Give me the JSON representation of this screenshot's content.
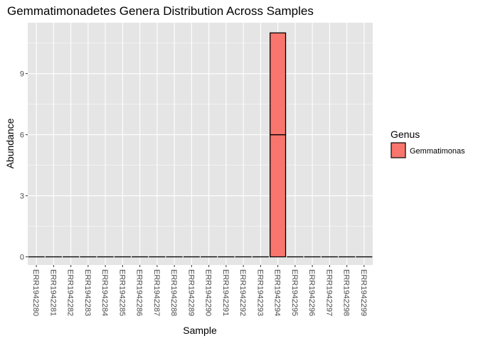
{
  "chart_data": {
    "type": "bar",
    "stacked": true,
    "title": "Gemmatimonadetes Genera Distribution Across Samples",
    "xlabel": "Sample",
    "ylabel": "Abundance",
    "ylim": [
      -0.4,
      11.5
    ],
    "yticks": [
      0,
      3,
      6,
      9
    ],
    "grid": true,
    "legend": {
      "title": "Genus",
      "position": "right"
    },
    "categories": [
      "ERR1942280",
      "ERR1942281",
      "ERR1942282",
      "ERR1942283",
      "ERR1942284",
      "ERR1942285",
      "ERR1942286",
      "ERR1942287",
      "ERR1942288",
      "ERR1942289",
      "ERR1942290",
      "ERR1942291",
      "ERR1942292",
      "ERR1942293",
      "ERR1942294",
      "ERR1942295",
      "ERR1942296",
      "ERR1942297",
      "ERR1942298",
      "ERR1942299"
    ],
    "series": [
      {
        "name": "Gemmatimonas",
        "color": "#f8766d",
        "segments": [
          [
            0
          ],
          [
            0
          ],
          [
            0
          ],
          [
            0
          ],
          [
            0
          ],
          [
            0
          ],
          [
            0
          ],
          [
            0
          ],
          [
            0
          ],
          [
            0
          ],
          [
            0
          ],
          [
            0
          ],
          [
            0
          ],
          [
            0
          ],
          [
            6,
            5
          ],
          [
            0
          ],
          [
            0
          ],
          [
            0
          ],
          [
            0
          ],
          [
            0
          ]
        ]
      }
    ]
  },
  "colors": {
    "panel": "#e5e5e5",
    "grid": "#ffffff",
    "bar_fill": "#f8766d",
    "bar_outline": "#000000"
  }
}
